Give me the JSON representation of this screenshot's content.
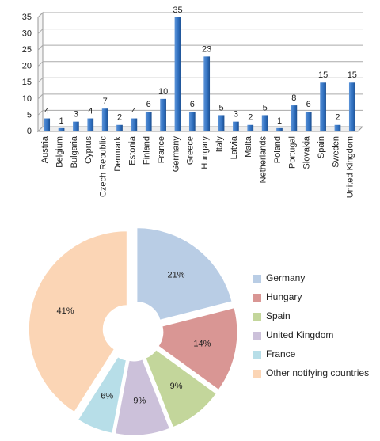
{
  "chart_data": [
    {
      "type": "bar",
      "categories": [
        "Austria",
        "Belgium",
        "Bulgaria",
        "Cyprus",
        "Czech Republic",
        "Denmark",
        "Estonia",
        "Finland",
        "France",
        "Germany",
        "Greece",
        "Hungary",
        "Italy",
        "Latvia",
        "Malta",
        "Netherlands",
        "Poland",
        "Portugal",
        "Slovakia",
        "Spain",
        "Sweden",
        "United Kingdom"
      ],
      "values": [
        4,
        1,
        3,
        4,
        7,
        2,
        4,
        6,
        10,
        35,
        6,
        23,
        5,
        3,
        2,
        5,
        1,
        8,
        6,
        15,
        2,
        15
      ],
      "color": "#2f6fbf",
      "ylim": [
        0,
        35
      ],
      "yticks": [
        0,
        5,
        10,
        15,
        20,
        25,
        30,
        35
      ],
      "grid": true
    },
    {
      "type": "doughnut",
      "categories": [
        "Germany",
        "Hungary",
        "Spain",
        "United Kingdom",
        "France",
        "Other notifying countries"
      ],
      "values": [
        21,
        14,
        9,
        9,
        6,
        41
      ],
      "value_labels": [
        "21%",
        "14%",
        "9%",
        "9%",
        "6%",
        "41%"
      ],
      "colors": [
        "#b9cde5",
        "#d99694",
        "#c3d69b",
        "#ccc1da",
        "#b7dee8",
        "#fbd5b5"
      ],
      "legend": "right"
    }
  ]
}
